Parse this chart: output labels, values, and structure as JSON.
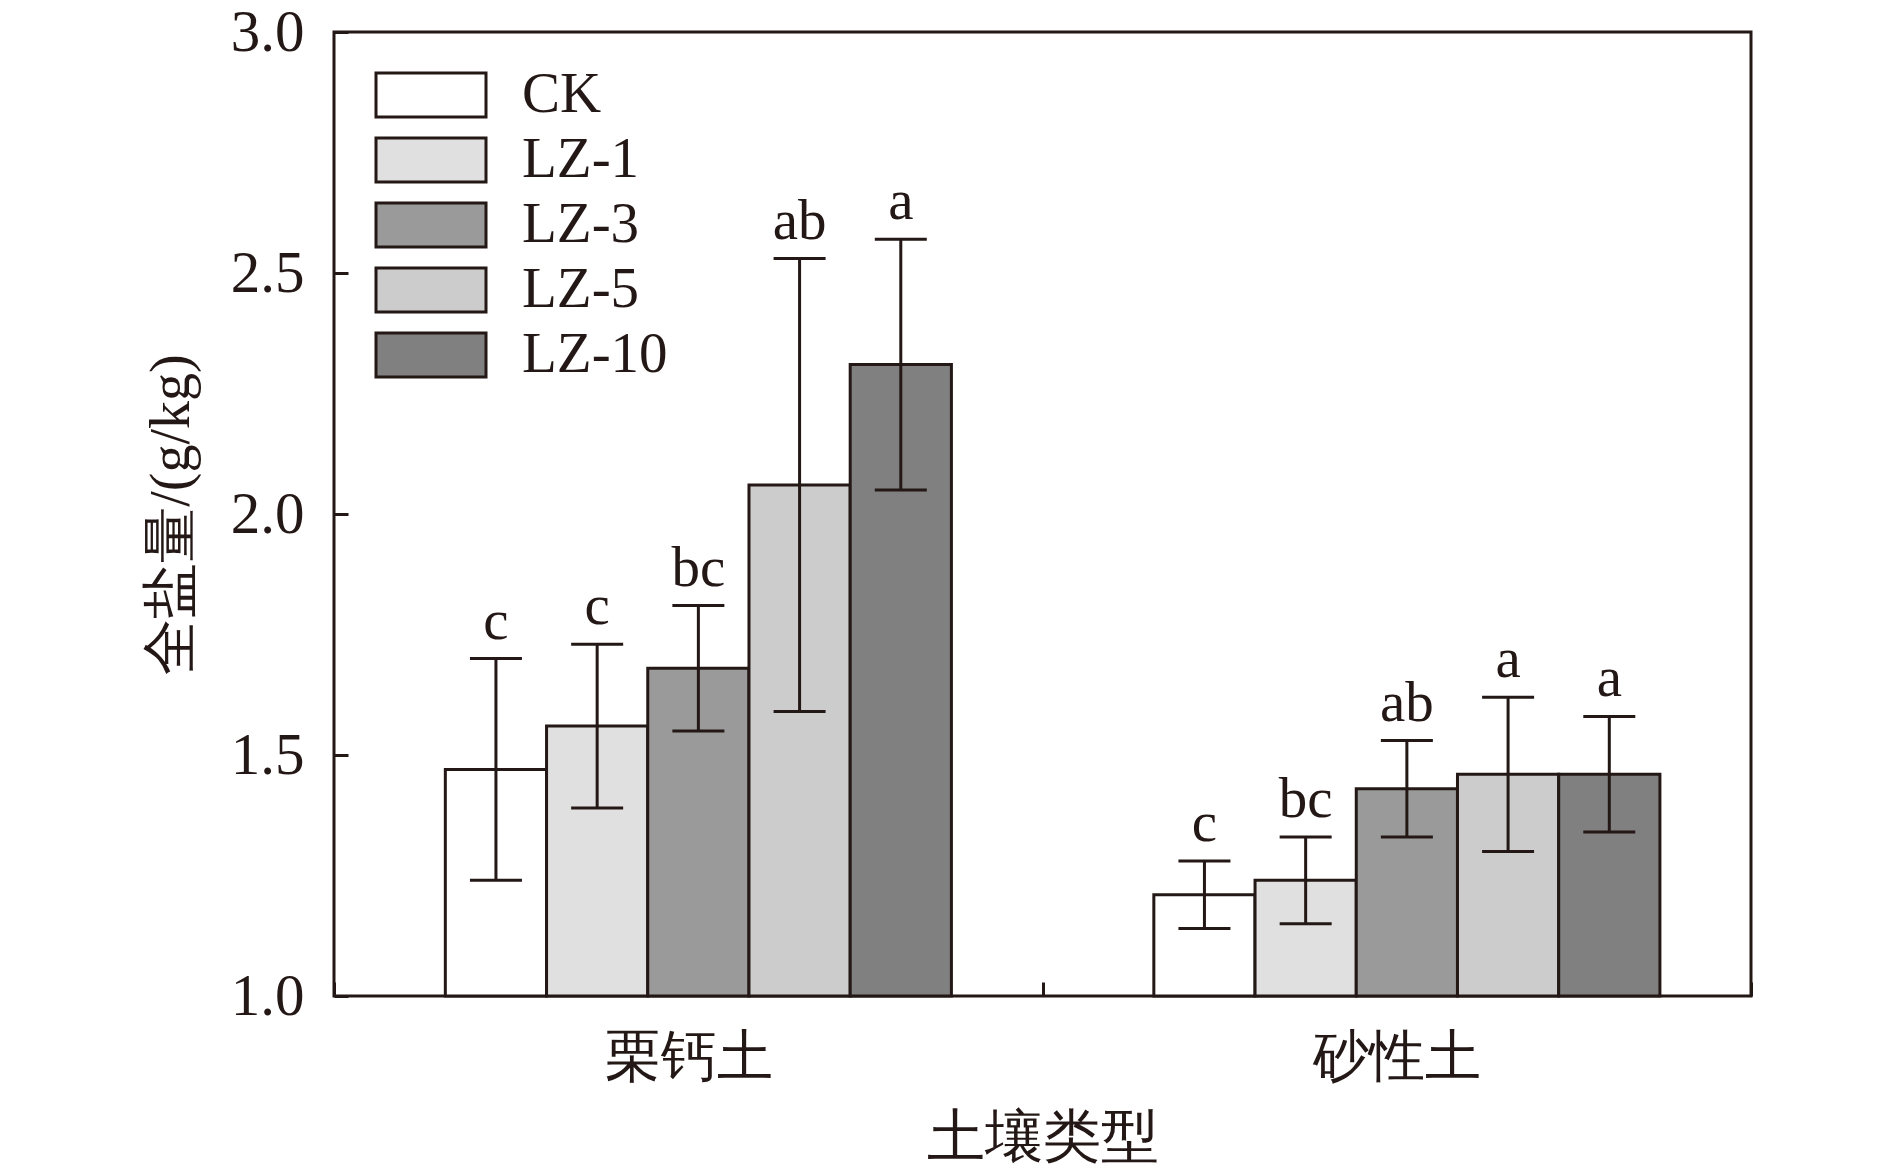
{
  "chart_data": {
    "type": "bar",
    "xlabel": "土壤类型",
    "ylabel": "全盐量/(g/kg)",
    "categories": [
      "栗钙土",
      "砂性土"
    ],
    "series": [
      {
        "name": "CK",
        "color": "#ffffff",
        "values": [
          1.47,
          1.21
        ],
        "errors": [
          0.23,
          0.07
        ]
      },
      {
        "name": "LZ-1",
        "color": "#e0e0e0",
        "values": [
          1.56,
          1.24
        ],
        "errors": [
          0.17,
          0.09
        ]
      },
      {
        "name": "LZ-3",
        "color": "#9a9a9a",
        "values": [
          1.68,
          1.43
        ],
        "errors": [
          0.13,
          0.1
        ]
      },
      {
        "name": "LZ-5",
        "color": "#cccccc",
        "values": [
          2.06,
          1.46
        ],
        "errors": [
          0.47,
          0.16
        ]
      },
      {
        "name": "LZ-10",
        "color": "#808080",
        "values": [
          2.31,
          1.46
        ],
        "errors": [
          0.26,
          0.12
        ]
      }
    ],
    "annotations": [
      "c",
      "c",
      "bc",
      "ab",
      "a",
      "c",
      "bc",
      "ab",
      "a",
      "a"
    ],
    "ylim": [
      1.0,
      3.0
    ],
    "yticks": [
      {
        "value": 1,
        "label": "1.0"
      },
      1.5,
      {
        "value": 2,
        "label": "2.0"
      },
      2.5,
      {
        "value": 3,
        "label": "3.0"
      }
    ],
    "grid": false,
    "legend": "top left"
  }
}
